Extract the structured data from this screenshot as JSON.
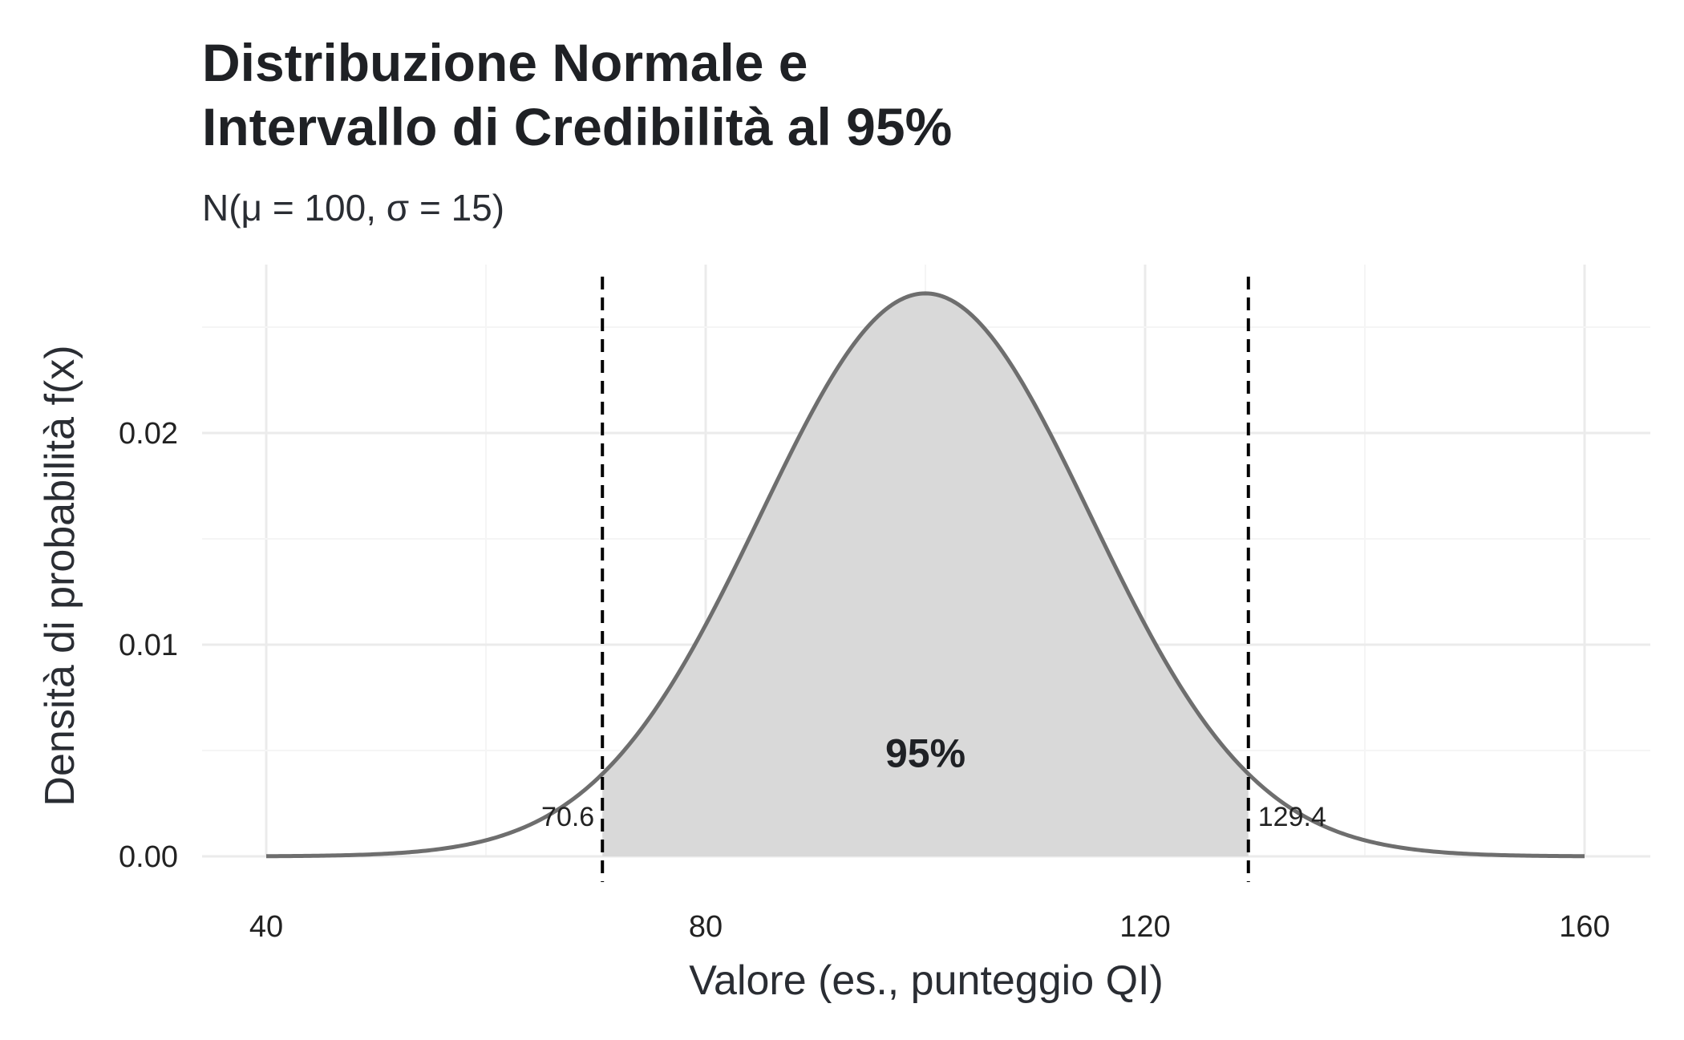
{
  "title_lines": [
    "Distribuzione Normale e",
    "Intervallo di Credibilità al 95%"
  ],
  "subtitle": "N(μ = 100, σ = 15)",
  "colors": {
    "curve": "#6e6e6e",
    "fill": "#d9d9d9",
    "bounds": "#000000",
    "grid_major": "#ebebeb",
    "grid_minor": "#f5f5f5",
    "text": "#222222"
  },
  "chart_data": {
    "type": "area",
    "title": "Distribuzione Normale e Intervallo di Credibilità al 95%",
    "subtitle": "N(μ = 100, σ = 15)",
    "xlabel": "Valore (es., punteggio QI)",
    "ylabel": "Densità di probabilità f(x)",
    "xlim": [
      40,
      160
    ],
    "ylim": [
      0,
      0.027
    ],
    "x_ticks": [
      40,
      80,
      120,
      160
    ],
    "x_tick_labels": [
      "40",
      "80",
      "120",
      "160"
    ],
    "y_ticks": [
      0,
      0.01,
      0.02
    ],
    "y_tick_labels": [
      "0.00",
      "0.01",
      "0.02"
    ],
    "grid": true,
    "distribution": {
      "family": "normal",
      "mean": 100,
      "sd": 15
    },
    "interval": {
      "lower": 70.6,
      "upper": 129.4,
      "mass": "95%"
    },
    "annotations": [
      {
        "text": "95%",
        "x": 100,
        "y": 0.0049
      },
      {
        "text": "70.6",
        "x": 70.6,
        "y": 0.0019
      },
      {
        "text": "129.4",
        "x": 129.4,
        "y": 0.0019
      }
    ]
  }
}
